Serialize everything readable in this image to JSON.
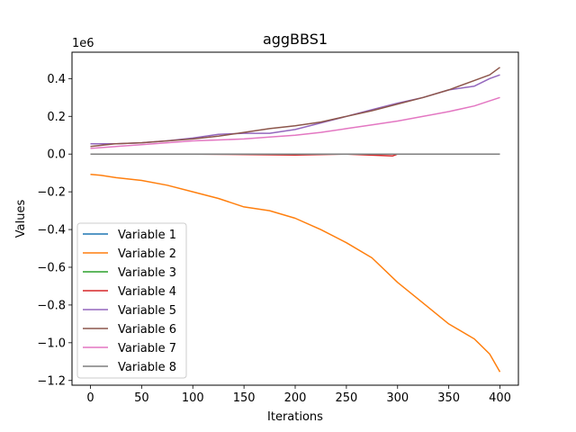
{
  "chart_data": {
    "type": "line",
    "title": "aggBBS1",
    "xlabel": "Iterations",
    "ylabel": "Values",
    "offset_label": "1e6",
    "xlim": [
      -18,
      418
    ],
    "ylim": [
      -1.225,
      0.54
    ],
    "xticks": [
      0,
      50,
      100,
      150,
      200,
      250,
      300,
      350,
      400
    ],
    "yticks": [
      -1.2,
      -1.0,
      -0.8,
      -0.6,
      -0.4,
      -0.2,
      0.0,
      0.2,
      0.4
    ],
    "ytick_labels": [
      "−1.2",
      "−1.0",
      "−0.8",
      "−0.6",
      "−0.4",
      "−0.2",
      "0.0",
      "0.2",
      "0.4"
    ],
    "grid": false,
    "legend_position": "lower-left",
    "series": [
      {
        "name": "Variable 1",
        "color": "#1f77b4",
        "points": [
          [
            0,
            0.0
          ],
          [
            100,
            0.0
          ],
          [
            200,
            0.0
          ],
          [
            300,
            0.0
          ],
          [
            400,
            0.0
          ]
        ]
      },
      {
        "name": "Variable 2",
        "color": "#ff7f0e",
        "points": [
          [
            0,
            -0.108
          ],
          [
            10,
            -0.112
          ],
          [
            25,
            -0.125
          ],
          [
            50,
            -0.14
          ],
          [
            75,
            -0.165
          ],
          [
            100,
            -0.2
          ],
          [
            125,
            -0.235
          ],
          [
            150,
            -0.28
          ],
          [
            175,
            -0.3
          ],
          [
            200,
            -0.34
          ],
          [
            225,
            -0.4
          ],
          [
            250,
            -0.47
          ],
          [
            275,
            -0.55
          ],
          [
            300,
            -0.68
          ],
          [
            325,
            -0.79
          ],
          [
            350,
            -0.9
          ],
          [
            375,
            -0.98
          ],
          [
            390,
            -1.06
          ],
          [
            400,
            -1.155
          ]
        ]
      },
      {
        "name": "Variable 3",
        "color": "#2ca02c",
        "points": [
          [
            0,
            0.0
          ],
          [
            100,
            0.0
          ],
          [
            200,
            0.0
          ],
          [
            300,
            0.0
          ],
          [
            400,
            0.0
          ]
        ]
      },
      {
        "name": "Variable 4",
        "color": "#d62728",
        "points": [
          [
            0,
            0.0
          ],
          [
            100,
            0.0
          ],
          [
            200,
            -0.005
          ],
          [
            250,
            0.0
          ],
          [
            295,
            -0.01
          ],
          [
            300,
            0.0
          ],
          [
            400,
            0.0
          ]
        ]
      },
      {
        "name": "Variable 5",
        "color": "#9467bd",
        "points": [
          [
            0,
            0.055
          ],
          [
            25,
            0.055
          ],
          [
            50,
            0.06
          ],
          [
            75,
            0.07
          ],
          [
            100,
            0.085
          ],
          [
            125,
            0.105
          ],
          [
            150,
            0.11
          ],
          [
            175,
            0.11
          ],
          [
            200,
            0.13
          ],
          [
            225,
            0.165
          ],
          [
            250,
            0.2
          ],
          [
            275,
            0.235
          ],
          [
            300,
            0.27
          ],
          [
            325,
            0.3
          ],
          [
            350,
            0.34
          ],
          [
            375,
            0.36
          ],
          [
            390,
            0.4
          ],
          [
            400,
            0.42
          ]
        ]
      },
      {
        "name": "Variable 6",
        "color": "#8c564b",
        "points": [
          [
            0,
            0.04
          ],
          [
            25,
            0.055
          ],
          [
            50,
            0.06
          ],
          [
            75,
            0.07
          ],
          [
            100,
            0.08
          ],
          [
            125,
            0.095
          ],
          [
            150,
            0.115
          ],
          [
            175,
            0.135
          ],
          [
            200,
            0.15
          ],
          [
            225,
            0.17
          ],
          [
            250,
            0.2
          ],
          [
            275,
            0.23
          ],
          [
            300,
            0.265
          ],
          [
            325,
            0.3
          ],
          [
            350,
            0.34
          ],
          [
            375,
            0.39
          ],
          [
            390,
            0.42
          ],
          [
            400,
            0.46
          ]
        ]
      },
      {
        "name": "Variable 7",
        "color": "#e377c2",
        "points": [
          [
            0,
            0.03
          ],
          [
            25,
            0.04
          ],
          [
            50,
            0.05
          ],
          [
            75,
            0.06
          ],
          [
            100,
            0.07
          ],
          [
            125,
            0.075
          ],
          [
            150,
            0.08
          ],
          [
            175,
            0.09
          ],
          [
            200,
            0.1
          ],
          [
            225,
            0.115
          ],
          [
            250,
            0.135
          ],
          [
            275,
            0.155
          ],
          [
            300,
            0.175
          ],
          [
            325,
            0.2
          ],
          [
            350,
            0.225
          ],
          [
            375,
            0.255
          ],
          [
            400,
            0.3
          ]
        ]
      },
      {
        "name": "Variable 8",
        "color": "#7f7f7f",
        "points": [
          [
            0,
            0.0
          ],
          [
            100,
            0.0
          ],
          [
            200,
            0.0
          ],
          [
            300,
            0.0
          ],
          [
            400,
            0.0
          ]
        ]
      }
    ]
  }
}
